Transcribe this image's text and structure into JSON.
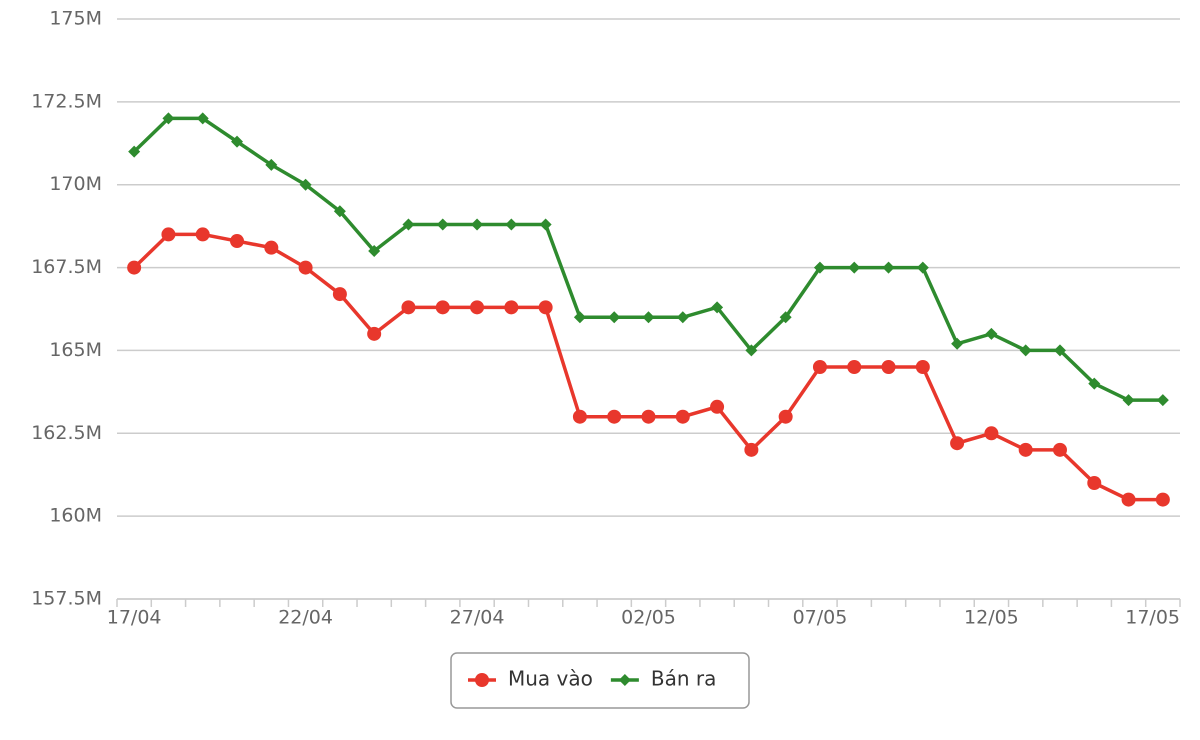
{
  "chart_data": {
    "type": "line",
    "categories": [
      "17/04",
      null,
      null,
      null,
      null,
      "22/04",
      null,
      null,
      null,
      null,
      "27/04",
      null,
      null,
      null,
      null,
      "02/05",
      null,
      null,
      null,
      null,
      "07/05",
      null,
      null,
      null,
      null,
      "12/05",
      null,
      null,
      null,
      null,
      "17/05"
    ],
    "series": [
      {
        "name": "Mua vào",
        "color": "#e8372c",
        "marker": "circle",
        "values": [
          167.5,
          168.5,
          168.5,
          168.3,
          168.1,
          167.5,
          166.7,
          165.5,
          166.3,
          166.3,
          166.3,
          166.3,
          166.3,
          163,
          163,
          163,
          163,
          163.3,
          162,
          163,
          164.5,
          164.5,
          164.5,
          164.5,
          162.2,
          162.5,
          162,
          162,
          161,
          160.5,
          160.5
        ]
      },
      {
        "name": "Bán ra",
        "color": "#2e8b2e",
        "marker": "diamond",
        "values": [
          171,
          172,
          172,
          171.3,
          170.6,
          170,
          169.2,
          168,
          168.8,
          168.8,
          168.8,
          168.8,
          168.8,
          166,
          166,
          166,
          166,
          166.3,
          165,
          166,
          167.5,
          167.5,
          167.5,
          167.5,
          165.2,
          165.5,
          165,
          165,
          164,
          163.5,
          163.5
        ]
      }
    ],
    "ylim": [
      157.5,
      175
    ],
    "yticks": [
      {
        "value": 157.5,
        "label": "157.5M"
      },
      {
        "value": 160,
        "label": "160M"
      },
      {
        "value": 162.5,
        "label": "162.5M"
      },
      {
        "value": 165,
        "label": "165M"
      },
      {
        "value": 167.5,
        "label": "167.5M"
      },
      {
        "value": 170,
        "label": "170M"
      },
      {
        "value": 172.5,
        "label": "172.5M"
      },
      {
        "value": 175,
        "label": "175M"
      }
    ],
    "grid": true
  }
}
